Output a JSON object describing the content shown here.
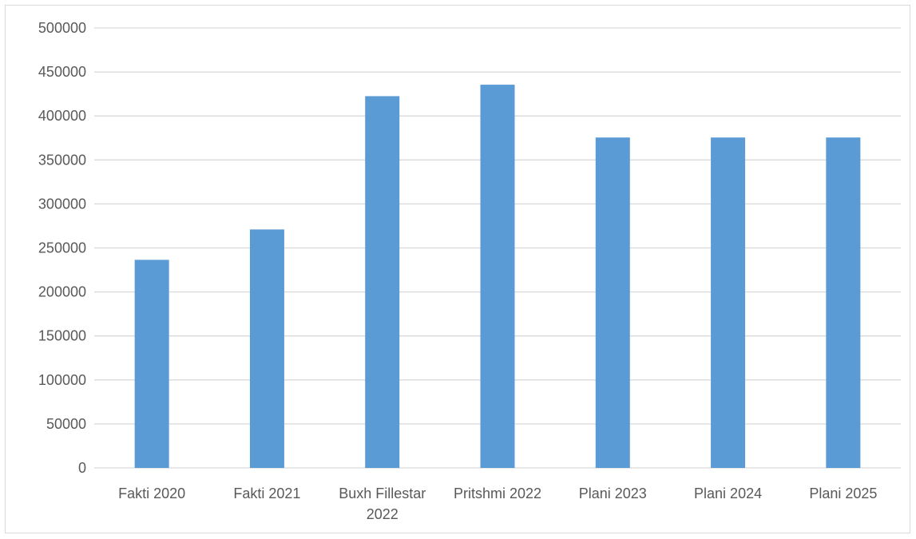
{
  "chart_data": {
    "type": "bar",
    "title": "",
    "xlabel": "",
    "ylabel": "",
    "categories": [
      [
        "Fakti 2020"
      ],
      [
        "Fakti 2021"
      ],
      [
        "Buxh Fillestar",
        "2022"
      ],
      [
        "Pritshmi 2022"
      ],
      [
        "Plani 2023"
      ],
      [
        "Plani 2024"
      ],
      [
        "Plani 2025"
      ]
    ],
    "values": [
      236500,
      271000,
      422500,
      435500,
      375500,
      375500,
      375500
    ],
    "ylim": [
      0,
      500000
    ],
    "yticks": [
      "0",
      "50000",
      "100000",
      "150000",
      "200000",
      "250000",
      "300000",
      "350000",
      "400000",
      "450000",
      "500000"
    ],
    "grid": true,
    "legend": "none",
    "colors": {
      "bar": "#5b9bd5",
      "grid": "#d9d9d9",
      "text": "#595959",
      "border": "#d9d9d9"
    }
  }
}
